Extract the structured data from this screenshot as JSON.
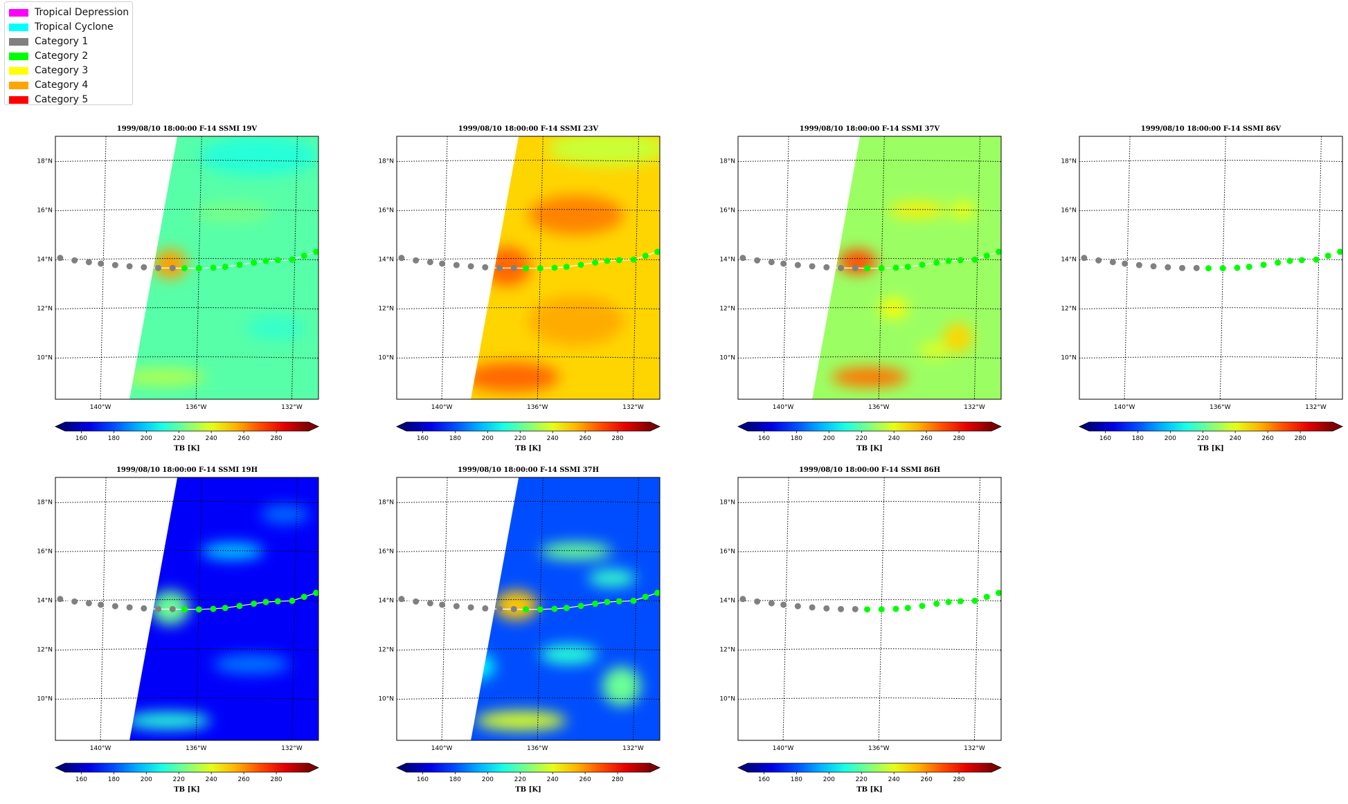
{
  "legend": {
    "items": [
      {
        "label": "Tropical Depression",
        "color": "#ff00ff"
      },
      {
        "label": "Tropical Cyclone",
        "color": "#00ffff"
      },
      {
        "label": "Category 1",
        "color": "#808080"
      },
      {
        "label": "Category 2",
        "color": "#00ff00"
      },
      {
        "label": "Category 3",
        "color": "#ffff00"
      },
      {
        "label": "Category 4",
        "color": "#ffa500"
      },
      {
        "label": "Category 5",
        "color": "#ff0000"
      }
    ]
  },
  "chart_data": {
    "type": "heatmap",
    "colormap": "jet",
    "colorbar": {
      "label": "TB [K]",
      "ticks": [
        160,
        180,
        200,
        220,
        240,
        260,
        280
      ],
      "range": [
        150,
        300
      ],
      "extend": "both"
    },
    "map": {
      "lon_ticks": [
        "140°W",
        "136°W",
        "132°W"
      ],
      "lat_ticks": [
        "18°N",
        "16°N",
        "14°N",
        "12°N",
        "10°N"
      ],
      "lon_range": [
        -142,
        -131
      ],
      "lat_range": [
        8.3,
        19
      ],
      "grid": "dotted"
    },
    "track": {
      "points": [
        {
          "lon": -141.8,
          "lat": 14.05,
          "category": "Category 1"
        },
        {
          "lon": -141.2,
          "lat": 13.95,
          "category": "Category 1"
        },
        {
          "lon": -140.6,
          "lat": 13.88,
          "category": "Category 1"
        },
        {
          "lon": -140.1,
          "lat": 13.82,
          "category": "Category 1"
        },
        {
          "lon": -139.5,
          "lat": 13.76,
          "category": "Category 1"
        },
        {
          "lon": -138.9,
          "lat": 13.71,
          "category": "Category 1"
        },
        {
          "lon": -138.3,
          "lat": 13.67,
          "category": "Category 1"
        },
        {
          "lon": -137.7,
          "lat": 13.64,
          "category": "Category 1"
        },
        {
          "lon": -137.1,
          "lat": 13.64,
          "category": "Category 1"
        },
        {
          "lon": -136.6,
          "lat": 13.63,
          "category": "Category 2"
        },
        {
          "lon": -136.0,
          "lat": 13.63,
          "category": "Category 2"
        },
        {
          "lon": -135.4,
          "lat": 13.65,
          "category": "Category 2"
        },
        {
          "lon": -134.9,
          "lat": 13.69,
          "category": "Category 2"
        },
        {
          "lon": -134.3,
          "lat": 13.77,
          "category": "Category 2"
        },
        {
          "lon": -133.7,
          "lat": 13.86,
          "category": "Category 2"
        },
        {
          "lon": -133.2,
          "lat": 13.93,
          "category": "Category 2"
        },
        {
          "lon": -132.7,
          "lat": 13.96,
          "category": "Category 2"
        },
        {
          "lon": -132.1,
          "lat": 13.98,
          "category": "Category 2"
        },
        {
          "lon": -131.6,
          "lat": 14.14,
          "category": "Category 2"
        },
        {
          "lon": -131.1,
          "lat": 14.3,
          "category": "Category 2"
        }
      ]
    },
    "panels": [
      {
        "title": "1999/08/10 18:00:00  F-14 SSMI 19V",
        "field": "19V",
        "swath": true
      },
      {
        "title": "1999/08/10 18:00:00  F-14 SSMI 23V",
        "field": "23V",
        "swath": true
      },
      {
        "title": "1999/08/10 18:00:00  F-14 SSMI 37V",
        "field": "37V",
        "swath": true
      },
      {
        "title": "1999/08/10 18:00:00  F-14 SSMI 86V",
        "field": "86V",
        "swath": false
      },
      {
        "title": "1999/08/10 18:00:00  F-14 SSMI 19H",
        "field": "19H",
        "swath": true
      },
      {
        "title": "1999/08/10 18:00:00  F-14 SSMI 37H",
        "field": "37H",
        "swath": true
      },
      {
        "title": "1999/08/10 18:00:00  F-14 SSMI 86H",
        "field": "86H",
        "swath": false
      }
    ]
  }
}
